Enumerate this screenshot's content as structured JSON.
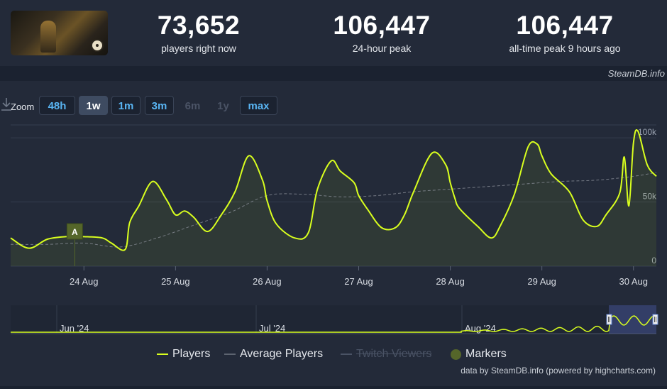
{
  "header": {
    "stats": [
      {
        "value": "73,652",
        "label": "players right now"
      },
      {
        "value": "106,447",
        "label": "24-hour peak"
      },
      {
        "value": "106,447",
        "label": "all-time peak 9 hours ago"
      }
    ],
    "credit": "SteamDB.info"
  },
  "zoom": {
    "label": "Zoom",
    "buttons": [
      {
        "label": "48h",
        "state": "normal"
      },
      {
        "label": "1w",
        "state": "active"
      },
      {
        "label": "1m",
        "state": "normal"
      },
      {
        "label": "3m",
        "state": "normal"
      },
      {
        "label": "6m",
        "state": "disabled"
      },
      {
        "label": "1y",
        "state": "disabled"
      },
      {
        "label": "max",
        "state": "normal"
      }
    ],
    "download_icon": "download-icon"
  },
  "legend": {
    "players": "Players",
    "average": "Average Players",
    "twitch": "Twitch Viewers",
    "markers": "Markers"
  },
  "footer": "data by SteamDB.info (powered by highcharts.com)",
  "colors": {
    "players": "#d9ff1e",
    "average": "#8a8f99",
    "marker": "#55662a",
    "bg": "#232a39"
  },
  "chart_data": {
    "type": "line",
    "x_ticks": [
      "24 Aug",
      "25 Aug",
      "26 Aug",
      "27 Aug",
      "28 Aug",
      "29 Aug",
      "30 Aug"
    ],
    "y_ticks": [
      "0",
      "50k",
      "100k"
    ],
    "ylim": [
      0,
      110000
    ],
    "marker": {
      "label": "A",
      "x": 23.9
    },
    "series": [
      {
        "name": "Players",
        "x": [
          23.2,
          23.4,
          23.6,
          23.8,
          24.0,
          24.2,
          24.3,
          24.45,
          24.5,
          24.6,
          24.75,
          24.9,
          25.0,
          25.1,
          25.2,
          25.35,
          25.5,
          25.65,
          25.8,
          25.95,
          26.0,
          26.1,
          26.3,
          26.45,
          26.55,
          26.7,
          26.8,
          26.95,
          27.0,
          27.1,
          27.25,
          27.4,
          27.5,
          27.6,
          27.8,
          27.95,
          28.0,
          28.05,
          28.1,
          28.3,
          28.45,
          28.55,
          28.7,
          28.85,
          28.95,
          29.0,
          29.1,
          29.3,
          29.45,
          29.6,
          29.7,
          29.85,
          29.9,
          29.95,
          30.0,
          30.05,
          30.15,
          30.25
        ],
        "values": [
          22000,
          14000,
          21000,
          23000,
          23000,
          22000,
          18000,
          13000,
          34000,
          47000,
          66000,
          52000,
          40000,
          43000,
          38000,
          27000,
          40000,
          58000,
          86000,
          67000,
          51000,
          33000,
          22000,
          26000,
          60000,
          82000,
          74000,
          65000,
          55000,
          44000,
          30000,
          30000,
          40000,
          58000,
          88000,
          79000,
          65000,
          53000,
          45000,
          31000,
          22000,
          32000,
          56000,
          93000,
          95000,
          86000,
          72000,
          58000,
          36000,
          31000,
          40000,
          57000,
          85000,
          47000,
          96000,
          105000,
          79000,
          70000
        ]
      },
      {
        "name": "Average Players",
        "x": [
          23.2,
          23.6,
          24.0,
          24.4,
          24.8,
          25.2,
          25.6,
          26.0,
          26.4,
          26.8,
          27.2,
          27.6,
          28.0,
          28.4,
          28.8,
          29.2,
          29.6,
          30.0,
          30.25
        ],
        "values": [
          17000,
          17000,
          18000,
          15000,
          22000,
          32000,
          42000,
          55000,
          56000,
          54000,
          55000,
          58000,
          60000,
          62000,
          64000,
          66000,
          67000,
          70000,
          73000
        ]
      }
    ],
    "navigator": {
      "labels": [
        "Jun '24",
        "Jul '24",
        "Aug '24"
      ]
    }
  }
}
